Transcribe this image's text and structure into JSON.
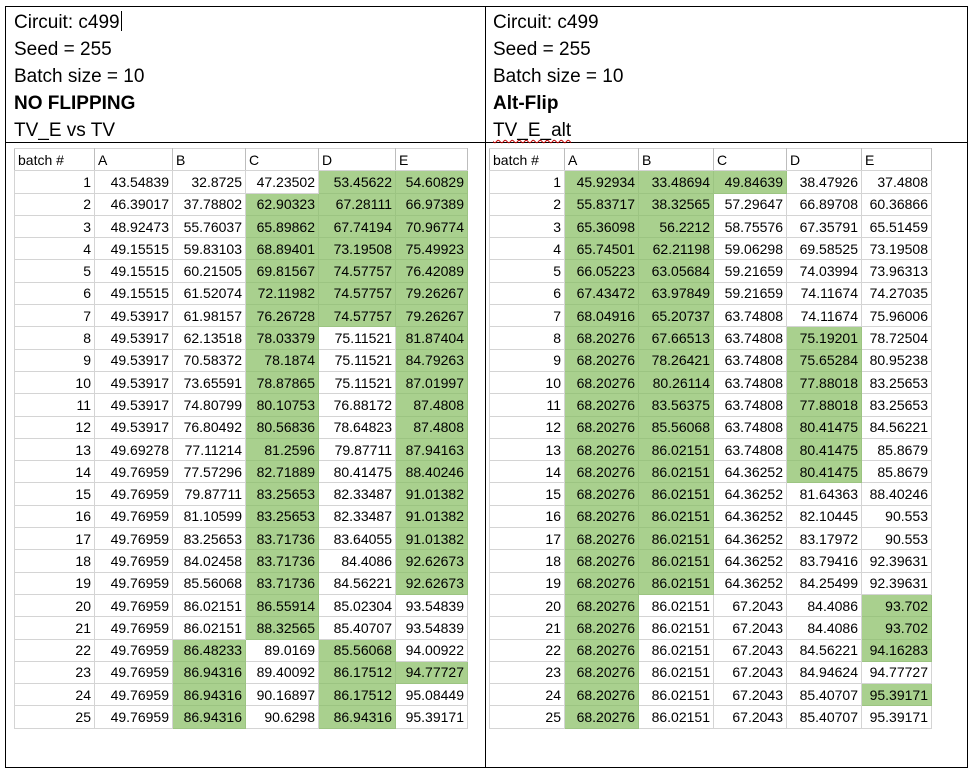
{
  "left_panel": {
    "header_lines": [
      "Circuit: c499",
      "Seed = 255",
      "Batch size = 10",
      "NO FLIPPING",
      "TV_E vs TV"
    ],
    "columns": [
      "batch #",
      "A",
      "B",
      "C",
      "D",
      "E"
    ],
    "rows": [
      [
        "1",
        "43.54839",
        "32.8725",
        "47.23502",
        "53.45622",
        "54.60829"
      ],
      [
        "2",
        "46.39017",
        "37.78802",
        "62.90323",
        "67.28111",
        "66.97389"
      ],
      [
        "3",
        "48.92473",
        "55.76037",
        "65.89862",
        "67.74194",
        "70.96774"
      ],
      [
        "4",
        "49.15515",
        "59.83103",
        "68.89401",
        "73.19508",
        "75.49923"
      ],
      [
        "5",
        "49.15515",
        "60.21505",
        "69.81567",
        "74.57757",
        "76.42089"
      ],
      [
        "6",
        "49.15515",
        "61.52074",
        "72.11982",
        "74.57757",
        "79.26267"
      ],
      [
        "7",
        "49.53917",
        "61.98157",
        "76.26728",
        "74.57757",
        "79.26267"
      ],
      [
        "8",
        "49.53917",
        "62.13518",
        "78.03379",
        "75.11521",
        "81.87404"
      ],
      [
        "9",
        "49.53917",
        "70.58372",
        "78.1874",
        "75.11521",
        "84.79263"
      ],
      [
        "10",
        "49.53917",
        "73.65591",
        "78.87865",
        "75.11521",
        "87.01997"
      ],
      [
        "11",
        "49.53917",
        "74.80799",
        "80.10753",
        "76.88172",
        "87.4808"
      ],
      [
        "12",
        "49.53917",
        "76.80492",
        "80.56836",
        "78.64823",
        "87.4808"
      ],
      [
        "13",
        "49.69278",
        "77.11214",
        "81.2596",
        "79.87711",
        "87.94163"
      ],
      [
        "14",
        "49.76959",
        "77.57296",
        "82.71889",
        "80.41475",
        "88.40246"
      ],
      [
        "15",
        "49.76959",
        "79.87711",
        "83.25653",
        "82.33487",
        "91.01382"
      ],
      [
        "16",
        "49.76959",
        "81.10599",
        "83.25653",
        "82.33487",
        "91.01382"
      ],
      [
        "17",
        "49.76959",
        "83.25653",
        "83.71736",
        "83.64055",
        "91.01382"
      ],
      [
        "18",
        "49.76959",
        "84.02458",
        "83.71736",
        "84.4086",
        "92.62673"
      ],
      [
        "19",
        "49.76959",
        "85.56068",
        "83.71736",
        "84.56221",
        "92.62673"
      ],
      [
        "20",
        "49.76959",
        "86.02151",
        "86.55914",
        "85.02304",
        "93.54839"
      ],
      [
        "21",
        "49.76959",
        "86.02151",
        "88.32565",
        "85.40707",
        "93.54839"
      ],
      [
        "22",
        "49.76959",
        "86.48233",
        "89.0169",
        "85.56068",
        "94.00922"
      ],
      [
        "23",
        "49.76959",
        "86.94316",
        "89.40092",
        "86.17512",
        "94.77727"
      ],
      [
        "24",
        "49.76959",
        "86.94316",
        "90.16897",
        "86.17512",
        "95.08449"
      ],
      [
        "25",
        "49.76959",
        "86.94316",
        "90.6298",
        "86.94316",
        "95.39171"
      ]
    ],
    "highlights": [
      [
        0,
        0,
        0,
        1,
        1
      ],
      [
        0,
        0,
        1,
        1,
        1
      ],
      [
        0,
        0,
        1,
        1,
        1
      ],
      [
        0,
        0,
        1,
        1,
        1
      ],
      [
        0,
        0,
        1,
        1,
        1
      ],
      [
        0,
        0,
        1,
        1,
        1
      ],
      [
        0,
        0,
        1,
        1,
        1
      ],
      [
        0,
        0,
        1,
        0,
        1
      ],
      [
        0,
        0,
        1,
        0,
        1
      ],
      [
        0,
        0,
        1,
        0,
        1
      ],
      [
        0,
        0,
        1,
        0,
        1
      ],
      [
        0,
        0,
        1,
        0,
        1
      ],
      [
        0,
        0,
        1,
        0,
        1
      ],
      [
        0,
        0,
        1,
        0,
        1
      ],
      [
        0,
        0,
        1,
        0,
        1
      ],
      [
        0,
        0,
        1,
        0,
        1
      ],
      [
        0,
        0,
        1,
        0,
        1
      ],
      [
        0,
        0,
        1,
        0,
        1
      ],
      [
        0,
        0,
        1,
        0,
        1
      ],
      [
        0,
        0,
        1,
        0,
        0
      ],
      [
        0,
        0,
        1,
        0,
        0
      ],
      [
        0,
        1,
        0,
        1,
        0
      ],
      [
        0,
        1,
        0,
        1,
        1
      ],
      [
        0,
        1,
        0,
        1,
        0
      ],
      [
        0,
        1,
        0,
        1,
        0
      ]
    ]
  },
  "right_panel": {
    "header_lines": [
      "Circuit: c499",
      "Seed = 255",
      "Batch size = 10",
      "Alt-Flip",
      "TV_E_alt"
    ],
    "columns": [
      "batch #",
      "A",
      "B",
      "C",
      "D",
      "E"
    ],
    "rows": [
      [
        "1",
        "45.92934",
        "33.48694",
        "49.84639",
        "38.47926",
        "37.4808"
      ],
      [
        "2",
        "55.83717",
        "38.32565",
        "57.29647",
        "66.89708",
        "60.36866"
      ],
      [
        "3",
        "65.36098",
        "56.2212",
        "58.75576",
        "67.35791",
        "65.51459"
      ],
      [
        "4",
        "65.74501",
        "62.21198",
        "59.06298",
        "69.58525",
        "73.19508"
      ],
      [
        "5",
        "66.05223",
        "63.05684",
        "59.21659",
        "74.03994",
        "73.96313"
      ],
      [
        "6",
        "67.43472",
        "63.97849",
        "59.21659",
        "74.11674",
        "74.27035"
      ],
      [
        "7",
        "68.04916",
        "65.20737",
        "63.74808",
        "74.11674",
        "75.96006"
      ],
      [
        "8",
        "68.20276",
        "67.66513",
        "63.74808",
        "75.19201",
        "78.72504"
      ],
      [
        "9",
        "68.20276",
        "78.26421",
        "63.74808",
        "75.65284",
        "80.95238"
      ],
      [
        "10",
        "68.20276",
        "80.26114",
        "63.74808",
        "77.88018",
        "83.25653"
      ],
      [
        "11",
        "68.20276",
        "83.56375",
        "63.74808",
        "77.88018",
        "83.25653"
      ],
      [
        "12",
        "68.20276",
        "85.56068",
        "63.74808",
        "80.41475",
        "84.56221"
      ],
      [
        "13",
        "68.20276",
        "86.02151",
        "63.74808",
        "80.41475",
        "85.8679"
      ],
      [
        "14",
        "68.20276",
        "86.02151",
        "64.36252",
        "80.41475",
        "85.8679"
      ],
      [
        "15",
        "68.20276",
        "86.02151",
        "64.36252",
        "81.64363",
        "88.40246"
      ],
      [
        "16",
        "68.20276",
        "86.02151",
        "64.36252",
        "82.10445",
        "90.553"
      ],
      [
        "17",
        "68.20276",
        "86.02151",
        "64.36252",
        "83.17972",
        "90.553"
      ],
      [
        "18",
        "68.20276",
        "86.02151",
        "64.36252",
        "83.79416",
        "92.39631"
      ],
      [
        "19",
        "68.20276",
        "86.02151",
        "64.36252",
        "84.25499",
        "92.39631"
      ],
      [
        "20",
        "68.20276",
        "86.02151",
        "67.2043",
        "84.4086",
        "93.702"
      ],
      [
        "21",
        "68.20276",
        "86.02151",
        "67.2043",
        "84.4086",
        "93.702"
      ],
      [
        "22",
        "68.20276",
        "86.02151",
        "67.2043",
        "84.56221",
        "94.16283"
      ],
      [
        "23",
        "68.20276",
        "86.02151",
        "67.2043",
        "84.94624",
        "94.77727"
      ],
      [
        "24",
        "68.20276",
        "86.02151",
        "67.2043",
        "85.40707",
        "95.39171"
      ],
      [
        "25",
        "68.20276",
        "86.02151",
        "67.2043",
        "85.40707",
        "95.39171"
      ]
    ],
    "highlights": [
      [
        1,
        1,
        1,
        0,
        0
      ],
      [
        1,
        1,
        0,
        0,
        0
      ],
      [
        1,
        1,
        0,
        0,
        0
      ],
      [
        1,
        1,
        0,
        0,
        0
      ],
      [
        1,
        1,
        0,
        0,
        0
      ],
      [
        1,
        1,
        0,
        0,
        0
      ],
      [
        1,
        1,
        0,
        0,
        0
      ],
      [
        1,
        1,
        0,
        1,
        0
      ],
      [
        1,
        1,
        0,
        1,
        0
      ],
      [
        1,
        1,
        0,
        1,
        0
      ],
      [
        1,
        1,
        0,
        1,
        0
      ],
      [
        1,
        1,
        0,
        1,
        0
      ],
      [
        1,
        1,
        0,
        1,
        0
      ],
      [
        1,
        1,
        0,
        1,
        0
      ],
      [
        1,
        1,
        0,
        0,
        0
      ],
      [
        1,
        1,
        0,
        0,
        0
      ],
      [
        1,
        1,
        0,
        0,
        0
      ],
      [
        1,
        1,
        0,
        0,
        0
      ],
      [
        1,
        1,
        0,
        0,
        0
      ],
      [
        1,
        0,
        0,
        0,
        1
      ],
      [
        1,
        0,
        0,
        0,
        1
      ],
      [
        1,
        0,
        0,
        0,
        1
      ],
      [
        1,
        0,
        0,
        0,
        0
      ],
      [
        1,
        0,
        0,
        0,
        1
      ],
      [
        1,
        0,
        0,
        0,
        0
      ]
    ]
  },
  "colors": {
    "highlight": "#a9d08e",
    "gridline": "#d4d4d4",
    "border": "#000000"
  }
}
